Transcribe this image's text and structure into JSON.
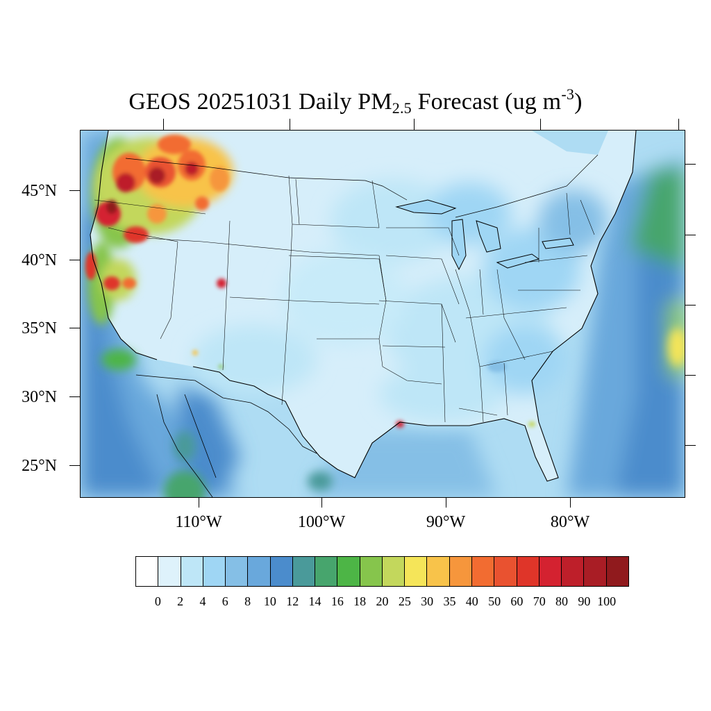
{
  "title": {
    "prefix": "GEOS 20251031 Daily PM",
    "subscript": "2.5",
    "middle": " Forecast (ug m",
    "superscript": "-3",
    "suffix": ")"
  },
  "map": {
    "region": "Contiguous United States",
    "projection": "Lambert conformal",
    "ocean_color": "#aedcf3",
    "land_color": "#d6eefa",
    "boundary_color": "#000000",
    "hotspots": [
      {
        "name": "Pacific Northwest",
        "level": "90-100"
      },
      {
        "name": "Northern California",
        "level": "60-90"
      },
      {
        "name": "Utah",
        "level": "60-70"
      },
      {
        "name": "Louisiana coast",
        "level": "70-80"
      },
      {
        "name": "Central Florida",
        "level": "20-25"
      },
      {
        "name": "Atlantic offshore",
        "level": "25-30"
      }
    ]
  },
  "latitude_labels": [
    "45°N",
    "40°N",
    "35°N",
    "30°N",
    "25°N"
  ],
  "longitude_labels": [
    "110°W",
    "100°W",
    "90°W",
    "80°W"
  ],
  "colorbar": {
    "colors": [
      "#ffffff",
      "#def2fb",
      "#bee6f7",
      "#9fd6f4",
      "#85bfe6",
      "#69a8dc",
      "#4b8ccc",
      "#4a9a9a",
      "#47a56d",
      "#4db546",
      "#86c54c",
      "#c3d75c",
      "#f5e559",
      "#f8c34a",
      "#f6963c",
      "#f26c31",
      "#e95230",
      "#df3529",
      "#d42230",
      "#be1f2a",
      "#a91d25",
      "#901a1d"
    ],
    "labels": [
      "0",
      "2",
      "4",
      "6",
      "8",
      "10",
      "12",
      "14",
      "16",
      "18",
      "20",
      "25",
      "30",
      "35",
      "40",
      "50",
      "60",
      "70",
      "80",
      "90",
      "100"
    ]
  }
}
